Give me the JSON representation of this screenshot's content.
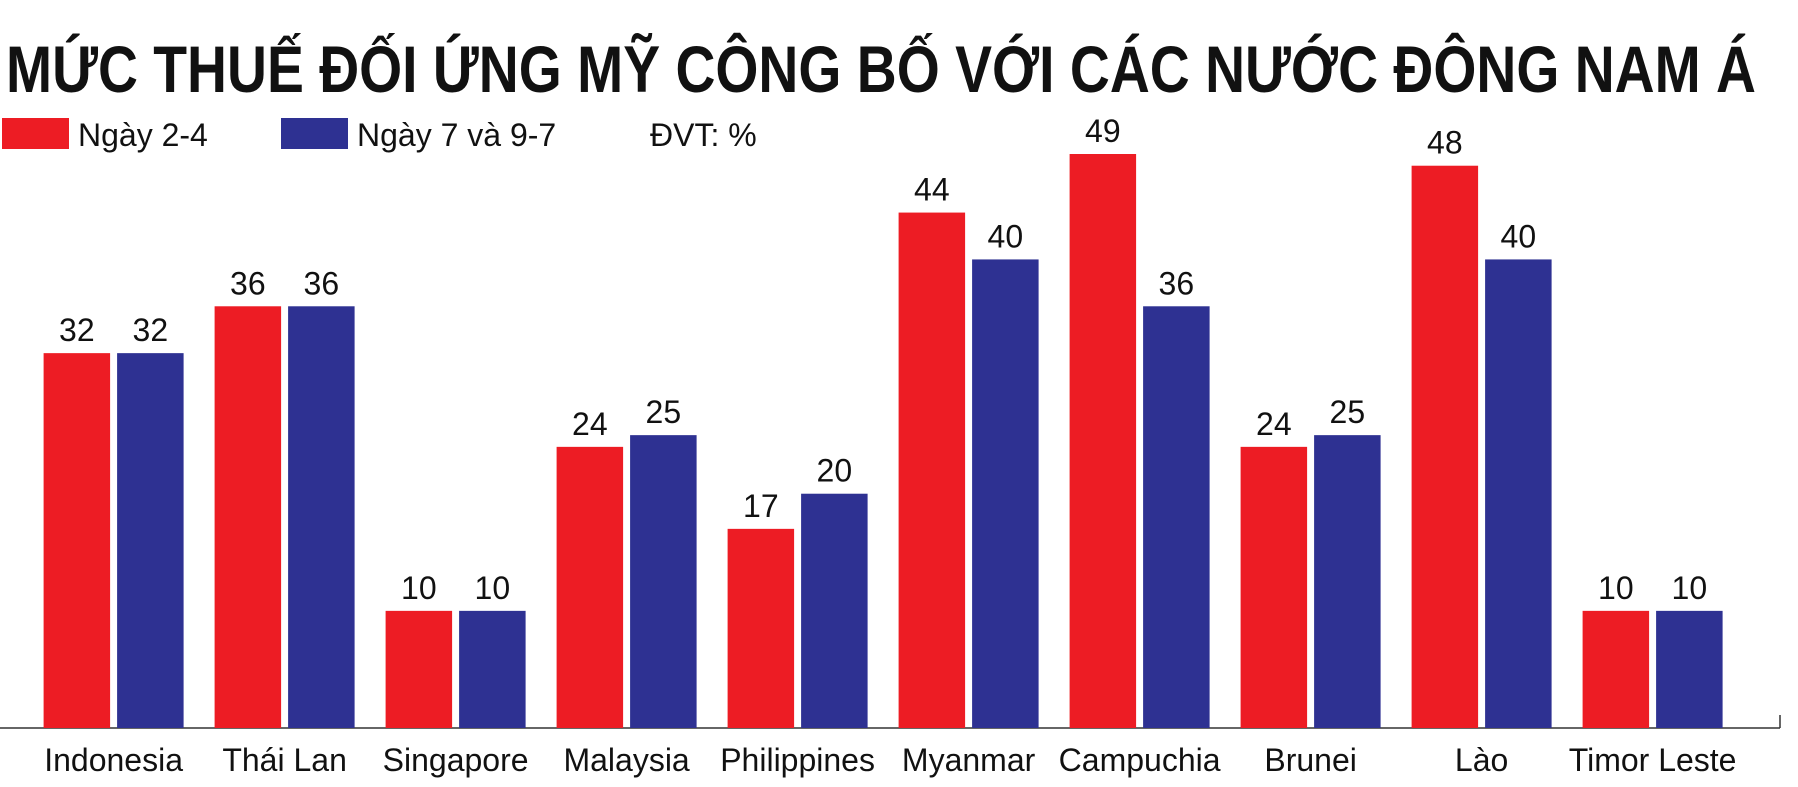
{
  "chart_data": {
    "type": "bar",
    "title": "MỨC THUẾ ĐỐI ỨNG MỸ CÔNG BỐ VỚI CÁC NƯỚC ĐÔNG NAM Á",
    "unit_note": "ĐVT: %",
    "categories": [
      "Indonesia",
      "Thái Lan",
      "Singapore",
      "Malaysia",
      "Philippines",
      "Myanmar",
      "Campuchia",
      "Brunei",
      "Lào",
      "Timor Leste"
    ],
    "series": [
      {
        "name": "Ngày 2-4",
        "color": "#ed1c24",
        "values": [
          32,
          36,
          10,
          24,
          17,
          44,
          49,
          24,
          48,
          10
        ]
      },
      {
        "name": "Ngày 7 và 9-7",
        "color": "#2e3192",
        "values": [
          32,
          36,
          10,
          25,
          20,
          40,
          36,
          25,
          40,
          10
        ]
      }
    ]
  }
}
